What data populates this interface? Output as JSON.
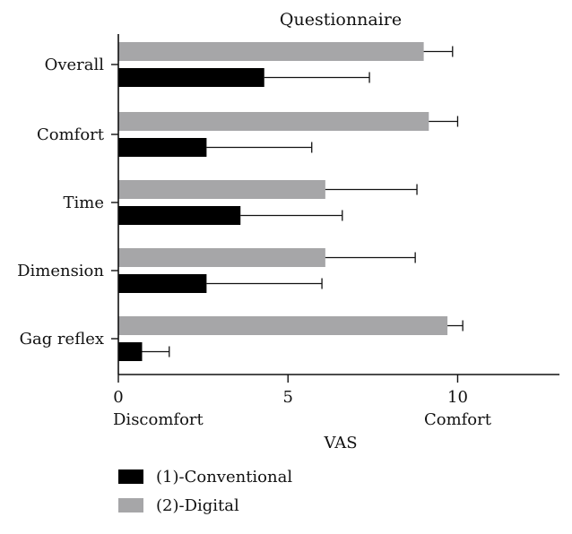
{
  "chart_data": {
    "type": "bar",
    "orientation": "horizontal",
    "title": "Questionnaire",
    "xlabel": "VAS",
    "ylabel": "",
    "xlim": [
      0,
      13
    ],
    "x_ticks": [
      0,
      5,
      10
    ],
    "x_tick_labels": [
      "0",
      "5",
      "10"
    ],
    "x_scale_annotations": [
      {
        "text": "Discomfort",
        "at": 0
      },
      {
        "text": "Comfort",
        "at": 10
      }
    ],
    "categories": [
      "Overall",
      "Comfort",
      "Time",
      "Dimension",
      "Gag reflex"
    ],
    "series": [
      {
        "name": "(2)-Digital",
        "color": "#a6a6a8",
        "values": [
          9.0,
          9.15,
          6.1,
          6.1,
          9.7
        ],
        "error": [
          0.85,
          0.85,
          2.7,
          2.65,
          0.45
        ]
      },
      {
        "name": "(1)-Conventional",
        "color": "#000000",
        "values": [
          4.3,
          2.6,
          3.6,
          2.6,
          0.7
        ],
        "error": [
          3.1,
          3.1,
          3.0,
          3.4,
          0.8
        ]
      }
    ],
    "legend": {
      "position": "bottom-left",
      "entries": [
        {
          "label": "(1)-Conventional",
          "color": "#000000"
        },
        {
          "label": "(2)-Digital",
          "color": "#a6a6a8"
        }
      ]
    },
    "grid": false
  }
}
